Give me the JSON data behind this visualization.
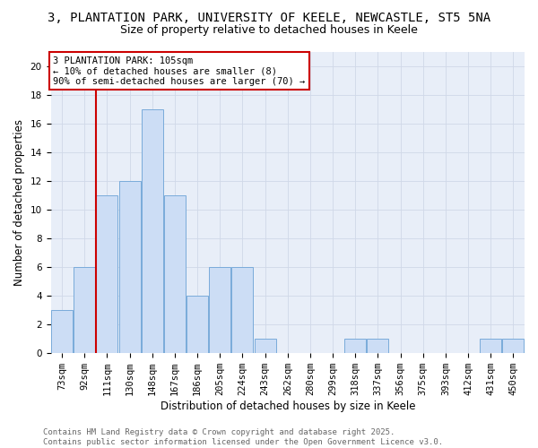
{
  "title": "3, PLANTATION PARK, UNIVERSITY OF KEELE, NEWCASTLE, ST5 5NA",
  "subtitle": "Size of property relative to detached houses in Keele",
  "xlabel": "Distribution of detached houses by size in Keele",
  "ylabel": "Number of detached properties",
  "categories": [
    "73sqm",
    "92sqm",
    "111sqm",
    "130sqm",
    "148sqm",
    "167sqm",
    "186sqm",
    "205sqm",
    "224sqm",
    "243sqm",
    "262sqm",
    "280sqm",
    "299sqm",
    "318sqm",
    "337sqm",
    "356sqm",
    "375sqm",
    "393sqm",
    "412sqm",
    "431sqm",
    "450sqm"
  ],
  "values": [
    3,
    6,
    11,
    12,
    17,
    11,
    4,
    6,
    6,
    1,
    0,
    0,
    0,
    1,
    1,
    0,
    0,
    0,
    0,
    1,
    1
  ],
  "bar_color": "#ccddf5",
  "bar_edge_color": "#7aabda",
  "red_line_bar_index": 2,
  "red_line_color": "#cc0000",
  "annotation_text": "3 PLANTATION PARK: 105sqm\n← 10% of detached houses are smaller (8)\n90% of semi-detached houses are larger (70) →",
  "annotation_box_color": "#ffffff",
  "annotation_box_edge_color": "#cc0000",
  "ylim": [
    0,
    21
  ],
  "yticks": [
    0,
    2,
    4,
    6,
    8,
    10,
    12,
    14,
    16,
    18,
    20
  ],
  "grid_color": "#d0d8e8",
  "bg_color": "#e8eef8",
  "footer_text": "Contains HM Land Registry data © Crown copyright and database right 2025.\nContains public sector information licensed under the Open Government Licence v3.0.",
  "title_fontsize": 10,
  "subtitle_fontsize": 9,
  "axis_label_fontsize": 8.5,
  "tick_fontsize": 7.5,
  "annotation_fontsize": 7.5,
  "footer_fontsize": 6.5
}
